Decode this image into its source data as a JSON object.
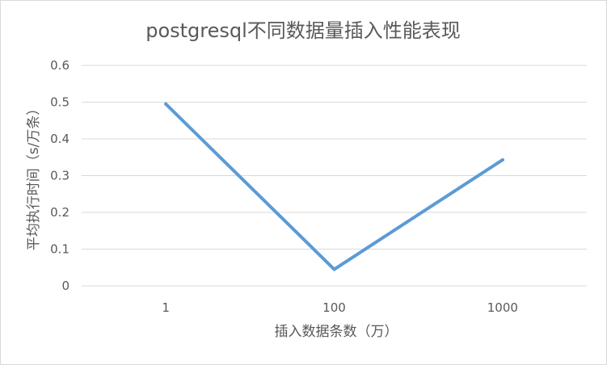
{
  "chart_data": {
    "type": "line",
    "title": "postgresql不同数据量插入性能表现",
    "xlabel": "插入数据条数（万）",
    "ylabel": "平均执行时间（s/万条）",
    "categories": [
      "1",
      "100",
      "1000"
    ],
    "series": [
      {
        "values": [
          0.495,
          0.045,
          0.343
        ]
      }
    ],
    "ylim": [
      0,
      0.6
    ],
    "yticks": [
      0,
      0.1,
      0.2,
      0.3,
      0.4,
      0.5,
      0.6
    ],
    "ytick_labels": [
      "0",
      "0.1",
      "0.2",
      "0.3",
      "0.4",
      "0.5",
      "0.6"
    ],
    "grid": true,
    "legend": "none",
    "colors": {
      "series": "#5b9bd5",
      "grid": "#d9d9d9",
      "text": "#595959"
    }
  }
}
